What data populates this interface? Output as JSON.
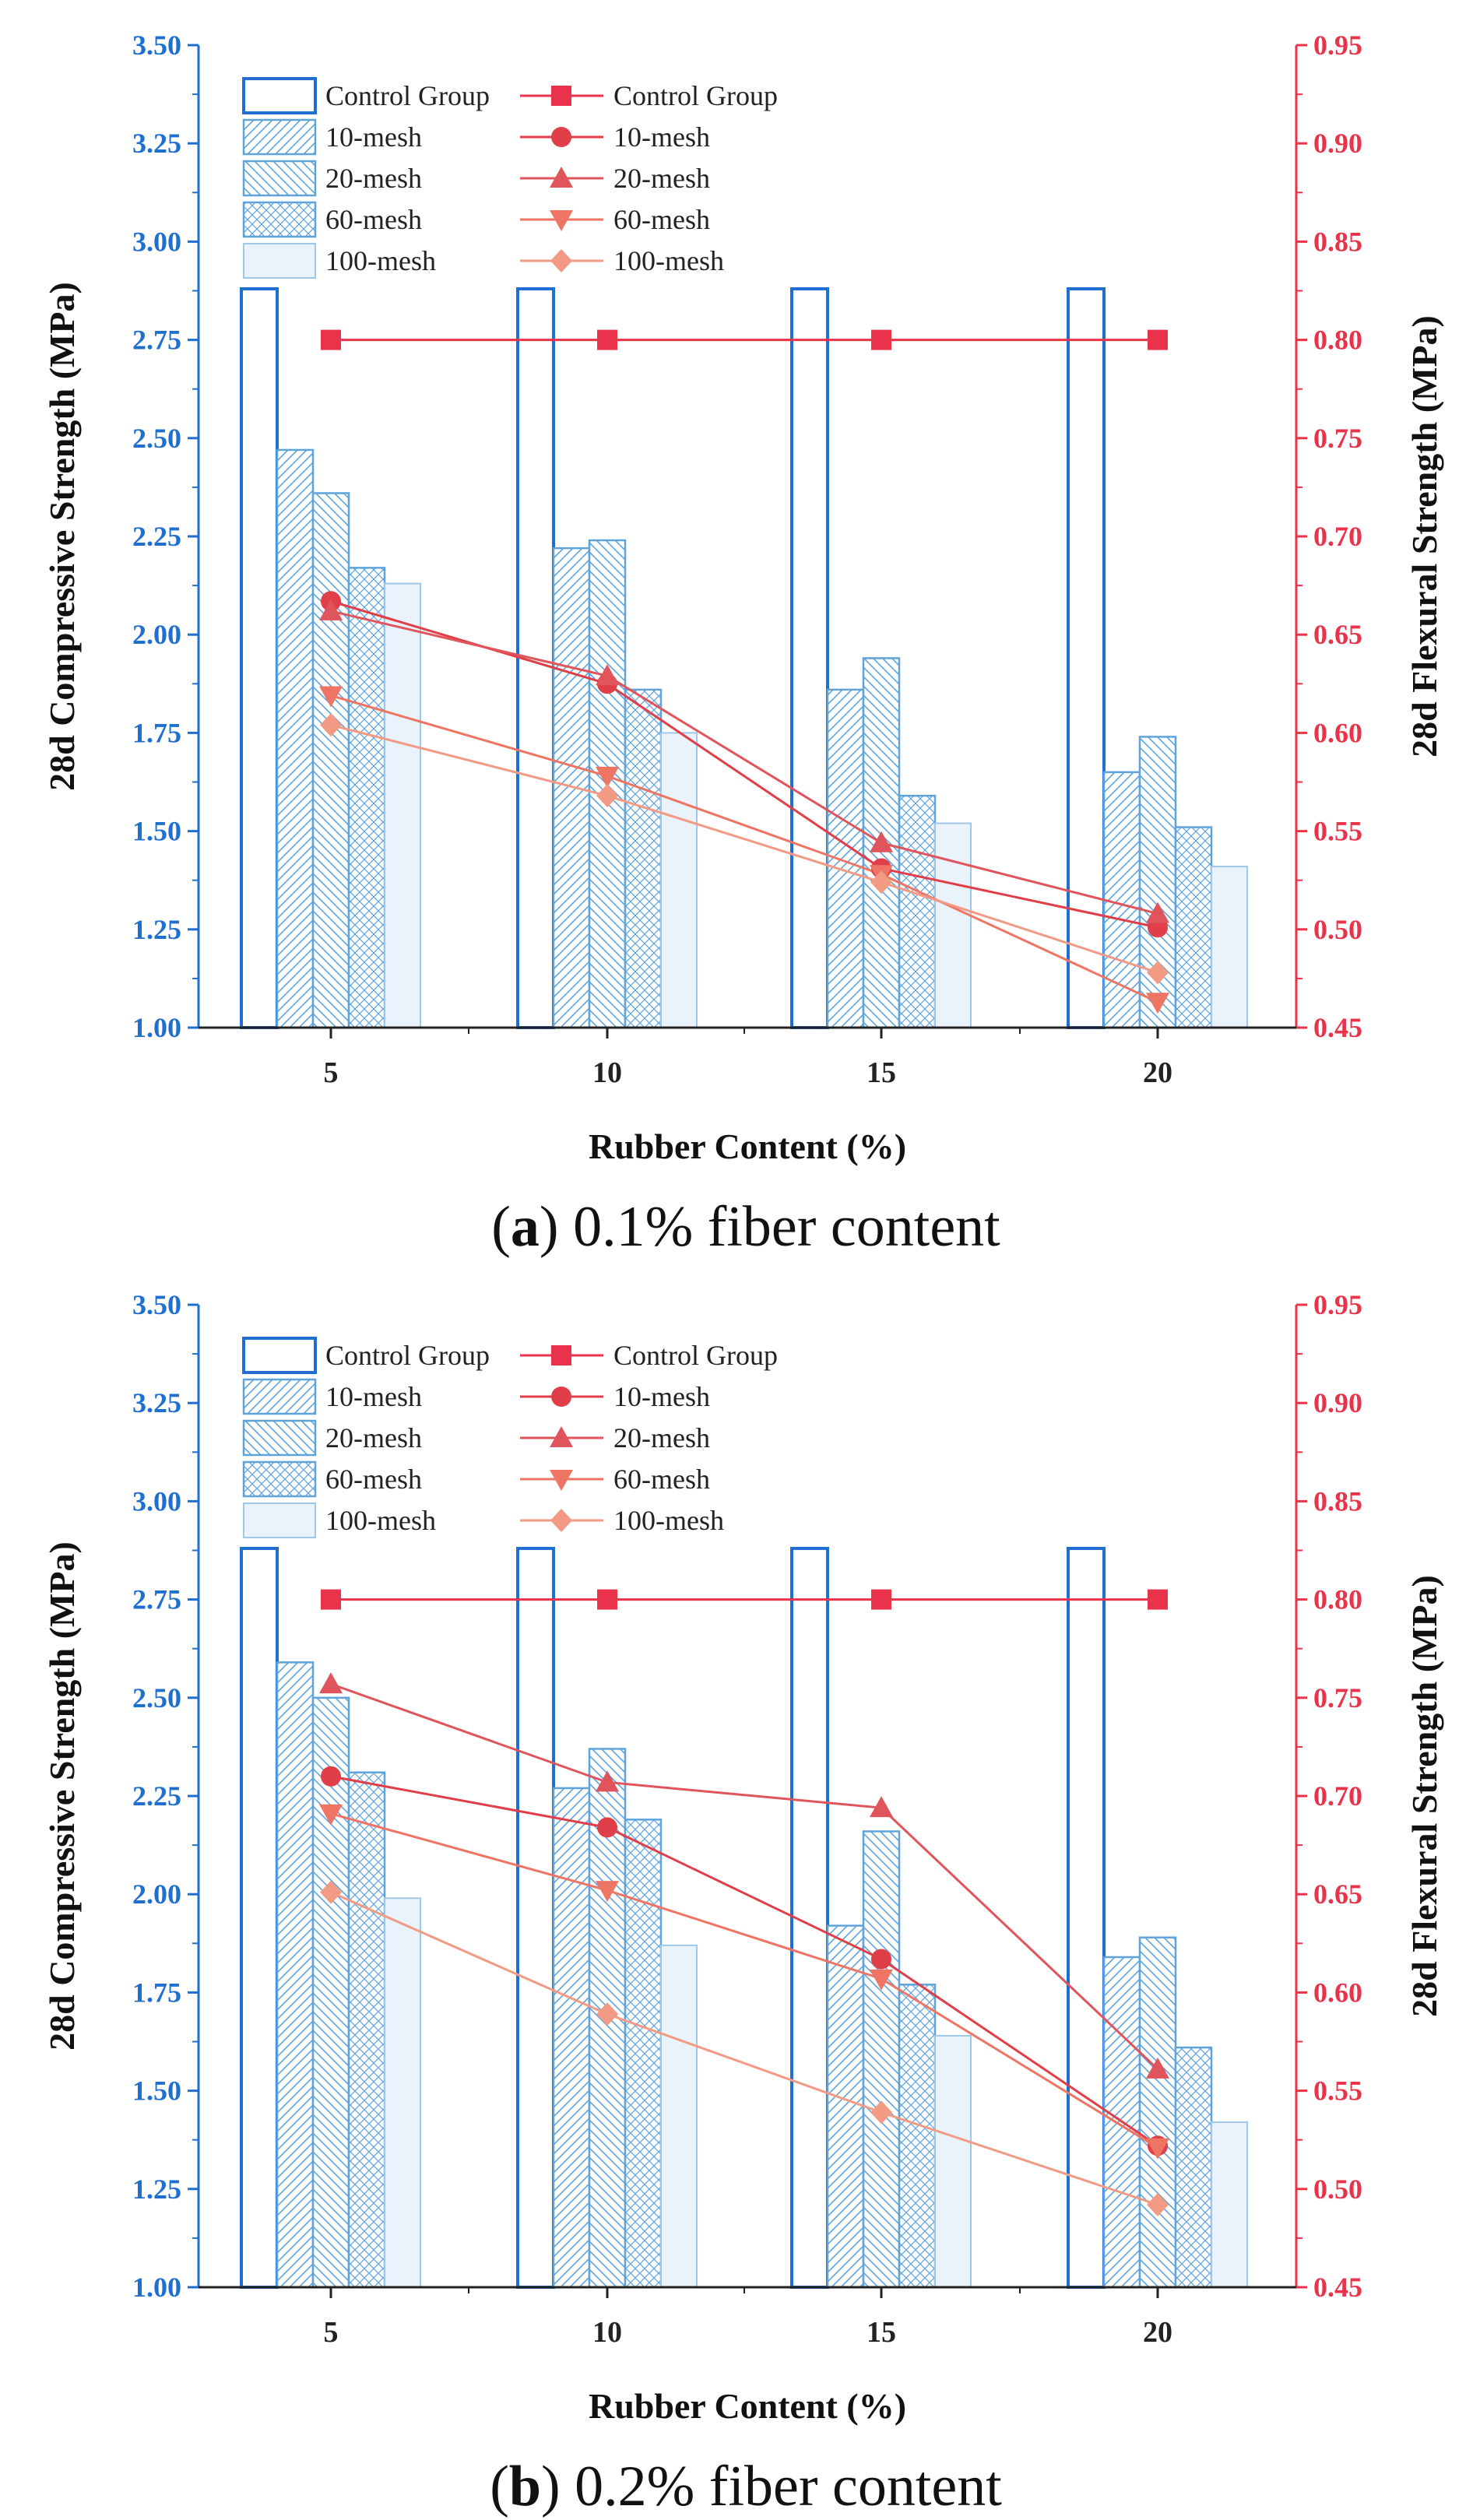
{
  "chart_data": [
    {
      "type": "bar",
      "panel": "a",
      "caption_letter": "a",
      "caption_text": "0.1% fiber content",
      "categories": [
        "5",
        "10",
        "15",
        "20"
      ],
      "xlabel": "Rubber Content (%)",
      "ylabel": "28d Compressive Strength (MPa)",
      "y2label": "28d Flexural Strength (MPa)",
      "ylim": [
        1.0,
        3.5
      ],
      "y2lim": [
        0.45,
        0.95
      ],
      "yticks": [
        "1.00",
        "1.25",
        "1.50",
        "1.75",
        "2.00",
        "2.25",
        "2.50",
        "2.75",
        "3.00",
        "3.25",
        "3.50"
      ],
      "y2ticks": [
        "0.45",
        "0.50",
        "0.55",
        "0.60",
        "0.65",
        "0.70",
        "0.75",
        "0.80",
        "0.85",
        "0.90",
        "0.95"
      ],
      "bar_series": [
        {
          "name": "Control Group",
          "values": [
            2.88,
            2.88,
            2.88,
            2.88
          ]
        },
        {
          "name": "10-mesh",
          "values": [
            2.47,
            2.22,
            1.86,
            1.65
          ]
        },
        {
          "name": "20-mesh",
          "values": [
            2.36,
            2.24,
            1.94,
            1.74
          ]
        },
        {
          "name": "60-mesh",
          "values": [
            2.17,
            1.86,
            1.59,
            1.51
          ]
        },
        {
          "name": "100-mesh",
          "values": [
            2.13,
            1.75,
            1.52,
            1.41
          ]
        }
      ],
      "line_series": [
        {
          "name": "Control Group",
          "marker": "square",
          "values": [
            0.8,
            0.8,
            0.8,
            0.8
          ]
        },
        {
          "name": "10-mesh",
          "marker": "circle",
          "values": [
            0.667,
            0.625,
            0.531,
            0.501
          ]
        },
        {
          "name": "20-mesh",
          "marker": "triangle-up",
          "values": [
            0.662,
            0.629,
            0.544,
            0.508
          ]
        },
        {
          "name": "60-mesh",
          "marker": "triangle-down",
          "values": [
            0.619,
            0.578,
            0.528,
            0.463
          ]
        },
        {
          "name": "100-mesh",
          "marker": "diamond",
          "values": [
            0.604,
            0.568,
            0.524,
            0.478
          ]
        }
      ]
    },
    {
      "type": "bar",
      "panel": "b",
      "caption_letter": "b",
      "caption_text": "0.2% fiber content",
      "categories": [
        "5",
        "10",
        "15",
        "20"
      ],
      "xlabel": "Rubber Content (%)",
      "ylabel": "28d Compressive Strength (MPa)",
      "y2label": "28d Flexural Strength (MPa)",
      "ylim": [
        1.0,
        3.5
      ],
      "y2lim": [
        0.45,
        0.95
      ],
      "yticks": [
        "1.00",
        "1.25",
        "1.50",
        "1.75",
        "2.00",
        "2.25",
        "2.50",
        "2.75",
        "3.00",
        "3.25",
        "3.50"
      ],
      "y2ticks": [
        "0.45",
        "0.50",
        "0.55",
        "0.60",
        "0.65",
        "0.70",
        "0.75",
        "0.80",
        "0.85",
        "0.90",
        "0.95"
      ],
      "bar_series": [
        {
          "name": "Control Group",
          "values": [
            2.88,
            2.88,
            2.88,
            2.88
          ]
        },
        {
          "name": "10-mesh",
          "values": [
            2.59,
            2.27,
            1.92,
            1.84
          ]
        },
        {
          "name": "20-mesh",
          "values": [
            2.5,
            2.37,
            2.16,
            1.89
          ]
        },
        {
          "name": "60-mesh",
          "values": [
            2.31,
            2.19,
            1.77,
            1.61
          ]
        },
        {
          "name": "100-mesh",
          "values": [
            1.99,
            1.87,
            1.64,
            1.42
          ]
        }
      ],
      "line_series": [
        {
          "name": "Control Group",
          "marker": "square",
          "values": [
            0.8,
            0.8,
            0.8,
            0.8
          ]
        },
        {
          "name": "10-mesh",
          "marker": "circle",
          "values": [
            0.71,
            0.684,
            0.617,
            0.522
          ]
        },
        {
          "name": "20-mesh",
          "marker": "triangle-up",
          "values": [
            0.757,
            0.707,
            0.694,
            0.561
          ]
        },
        {
          "name": "60-mesh",
          "marker": "triangle-down",
          "values": [
            0.691,
            0.652,
            0.607,
            0.521
          ]
        },
        {
          "name": "100-mesh",
          "marker": "diamond",
          "values": [
            0.651,
            0.589,
            0.539,
            0.492
          ]
        }
      ]
    }
  ],
  "colors": {
    "left_axis": "#1f6fd1",
    "right_axis": "#e8334a",
    "bar_control": "#1f6fd1",
    "bar_mesh": "#5ea4db",
    "bar_100_fill": "#eaf3fb",
    "line_control": "#e8334a",
    "line_10": "#e03e48",
    "line_20": "#e0545c",
    "line_60": "#ee7464",
    "line_100": "#f29a84"
  }
}
